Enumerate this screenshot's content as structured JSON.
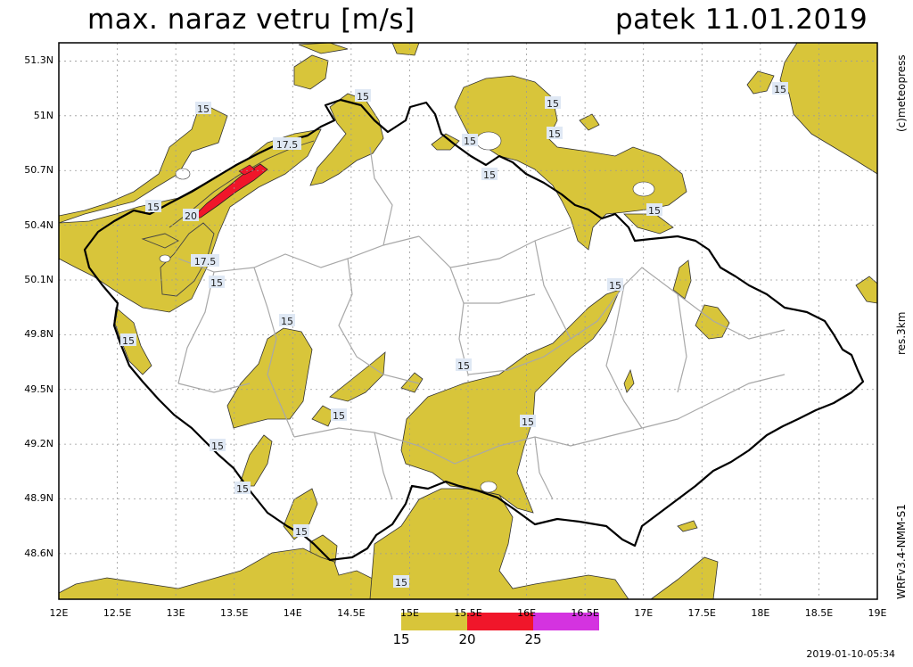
{
  "title": "max. naraz vetru [m/s]",
  "date": "patek 11.01.2019",
  "credit": "(c)meteopress",
  "resolution": "res.3km",
  "model": "WRFv3.4-NMM-S1",
  "timestamp": "2019-01-10-05:34",
  "axes": {
    "lat_labels": [
      "51.3N",
      "51N",
      "50.7N",
      "50.4N",
      "50.1N",
      "49.8N",
      "49.5N",
      "49.2N",
      "48.9N",
      "48.6N"
    ],
    "lon_labels": [
      "12E",
      "12.5E",
      "13E",
      "13.5E",
      "14E",
      "14.5E",
      "15E",
      "15.5E",
      "16E",
      "16.5E",
      "17E",
      "17.5E",
      "18E",
      "18.5E",
      "19E"
    ],
    "lat_range": [
      48.35,
      51.4
    ],
    "lon_range": [
      12,
      19
    ]
  },
  "colorbar": {
    "labels": [
      "15",
      "20",
      "25"
    ],
    "bins": [
      {
        "from": 15,
        "to": 20,
        "color": "#d8c53a"
      },
      {
        "from": 20,
        "to": 25,
        "color": "#f0162a"
      },
      {
        "from": 25,
        "to": 30,
        "color": "#d433e0"
      }
    ]
  },
  "contour_labels": [
    "15",
    "15",
    "15",
    "17.5",
    "15",
    "15",
    "15",
    "15",
    "15",
    "20",
    "17.5",
    "15",
    "15",
    "15",
    "15",
    "15",
    "15",
    "15",
    "15",
    "15",
    "15",
    "15",
    "15",
    "15"
  ],
  "colors": {
    "fill": "#d8c53a",
    "extreme": "#f0162a",
    "border": "#000000",
    "regions": "#a8a8a8",
    "grid": "#9a9a9a"
  }
}
